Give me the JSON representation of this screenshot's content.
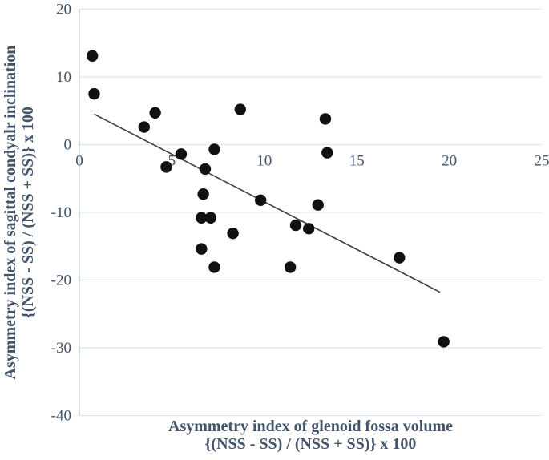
{
  "figure": {
    "background": "#ffffff"
  },
  "chart_data": {
    "type": "scatter",
    "title": "",
    "xlabel_line1": "Asymmetry index of glenoid fossa volume",
    "xlabel_line2": "{(NSS - SS) / (NSS + SS)} x 100",
    "ylabel_line1": "Asymmetry index of sagittal condyalr inclination",
    "ylabel_line2": "{(NSS - SS) / (NSS + SS)} x 100",
    "xlim": [
      0,
      25
    ],
    "ylim": [
      -40,
      20
    ],
    "x_ticks": [
      0,
      5,
      10,
      15,
      20,
      25
    ],
    "y_ticks": [
      20,
      10,
      0,
      -10,
      -20,
      -30,
      -40
    ],
    "grid": "horizontal-only",
    "legend": "none",
    "points": [
      [
        0.7,
        13.1
      ],
      [
        0.8,
        7.5
      ],
      [
        3.5,
        2.6
      ],
      [
        4.1,
        4.7
      ],
      [
        4.7,
        -3.3
      ],
      [
        5.5,
        -1.4
      ],
      [
        6.8,
        -3.6
      ],
      [
        7.3,
        -0.7
      ],
      [
        8.7,
        5.2
      ],
      [
        6.7,
        -7.3
      ],
      [
        9.8,
        -8.2
      ],
      [
        6.6,
        -10.8
      ],
      [
        7.1,
        -10.8
      ],
      [
        8.3,
        -13.1
      ],
      [
        6.6,
        -15.4
      ],
      [
        7.3,
        -18.1
      ],
      [
        11.4,
        -18.1
      ],
      [
        11.7,
        -11.9
      ],
      [
        12.4,
        -12.4
      ],
      [
        12.9,
        -8.9
      ],
      [
        13.3,
        3.8
      ],
      [
        13.4,
        -1.2
      ],
      [
        17.3,
        -16.7
      ],
      [
        19.7,
        -29.1
      ]
    ],
    "trendline": {
      "x1": 0.8,
      "y1": 4.5,
      "x2": 19.5,
      "y2": -21.8
    },
    "colors": {
      "point": "#111111",
      "trend": "#3f3f3f",
      "grid": "#dde5ef",
      "axis": "#b7c5d9",
      "label": "#44546a"
    }
  }
}
